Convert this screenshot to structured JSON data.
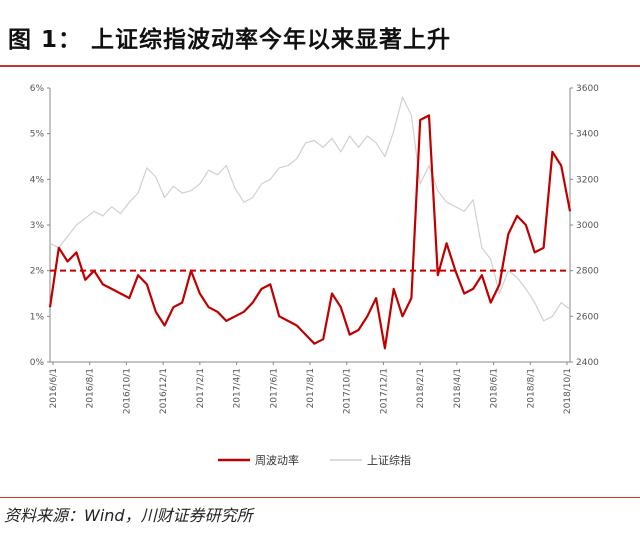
{
  "title": "图 1： 上证综指波动率今年以来显著上升",
  "source": "资料来源：Wind，川财证券研究所",
  "colors": {
    "vol": "#c00000",
    "index": "#d0d0d0",
    "rule": "#c0392b",
    "axis": "#888888"
  },
  "chart_data": {
    "type": "line",
    "title": "",
    "x_tick_labels": [
      "2016/6/1",
      "2016/8/1",
      "2016/10/1",
      "2016/12/1",
      "2017/2/1",
      "2017/4/1",
      "2017/6/1",
      "2017/8/1",
      "2017/10/1",
      "2017/12/1",
      "2018/2/1",
      "2018/4/1",
      "2018/6/1",
      "2018/8/1",
      "2018/10/1"
    ],
    "y_left": {
      "ticks": [
        "0%",
        "1%",
        "2%",
        "3%",
        "4%",
        "5%",
        "6%"
      ],
      "range": [
        0,
        6
      ]
    },
    "y_right": {
      "ticks": [
        "2400",
        "2600",
        "2800",
        "3000",
        "3200",
        "3400",
        "3600"
      ],
      "range": [
        2400,
        3600
      ]
    },
    "reference_line": {
      "value": 2,
      "axis": "left",
      "style": "dashed"
    },
    "legend": {
      "placement": "bottom"
    },
    "series": [
      {
        "name": "周波动率",
        "axis": "left",
        "x": [
          0,
          0.5,
          1,
          1.5,
          2,
          2.5,
          3,
          3.5,
          4,
          4.5,
          5,
          5.5,
          6,
          6.5,
          7,
          7.5,
          8,
          8.5,
          9,
          9.5,
          10,
          10.5,
          11,
          11.5,
          12,
          12.5,
          13,
          13.5,
          14,
          14.5,
          15,
          15.5,
          16,
          16.5,
          17,
          17.5,
          18,
          18.5,
          19,
          19.5,
          20,
          20.5,
          21,
          21.5,
          22,
          22.5,
          23,
          23.5,
          24,
          24.5,
          25,
          25.5,
          26,
          26.5,
          27,
          27.5,
          28,
          28.5,
          29,
          29.5
        ],
        "y": [
          1.2,
          2.5,
          2.2,
          2.4,
          1.8,
          2.0,
          1.7,
          1.6,
          1.5,
          1.4,
          1.9,
          1.7,
          1.1,
          0.8,
          1.2,
          1.3,
          2.0,
          1.5,
          1.2,
          1.1,
          0.9,
          1.0,
          1.1,
          1.3,
          1.6,
          1.7,
          1.0,
          0.9,
          0.8,
          0.6,
          0.4,
          0.5,
          1.5,
          1.2,
          0.6,
          0.7,
          1.0,
          1.4,
          0.3,
          1.6,
          1.0,
          1.4,
          5.3,
          5.4,
          1.9,
          2.6,
          2.0,
          1.5,
          1.6,
          1.9,
          1.3,
          1.7,
          2.8,
          3.2,
          3.0,
          2.4,
          2.5,
          4.6,
          4.3,
          3.3
        ],
        "color": "#c00000"
      },
      {
        "name": "上证综指",
        "axis": "right",
        "x": [
          0,
          0.5,
          1,
          1.5,
          2,
          2.5,
          3,
          3.5,
          4,
          4.5,
          5,
          5.5,
          6,
          6.5,
          7,
          7.5,
          8,
          8.5,
          9,
          9.5,
          10,
          10.5,
          11,
          11.5,
          12,
          12.5,
          13,
          13.5,
          14,
          14.5,
          15,
          15.5,
          16,
          16.5,
          17,
          17.5,
          18,
          18.5,
          19,
          19.5,
          20,
          20.5,
          21,
          21.5,
          22,
          22.5,
          23,
          23.5,
          24,
          24.5,
          25,
          25.5,
          26,
          26.5,
          27,
          27.5,
          28,
          28.5,
          29,
          29.5
        ],
        "y": [
          2920,
          2900,
          2950,
          3000,
          3030,
          3060,
          3040,
          3080,
          3050,
          3100,
          3140,
          3250,
          3210,
          3120,
          3170,
          3140,
          3150,
          3180,
          3240,
          3220,
          3260,
          3160,
          3100,
          3120,
          3180,
          3200,
          3250,
          3260,
          3290,
          3360,
          3370,
          3340,
          3380,
          3320,
          3390,
          3340,
          3390,
          3360,
          3300,
          3410,
          3560,
          3480,
          3180,
          3260,
          3150,
          3100,
          3080,
          3060,
          3110,
          2900,
          2850,
          2700,
          2800,
          2770,
          2720,
          2660,
          2580,
          2600,
          2660,
          2630
        ],
        "color": "#d0d0d0"
      }
    ]
  }
}
